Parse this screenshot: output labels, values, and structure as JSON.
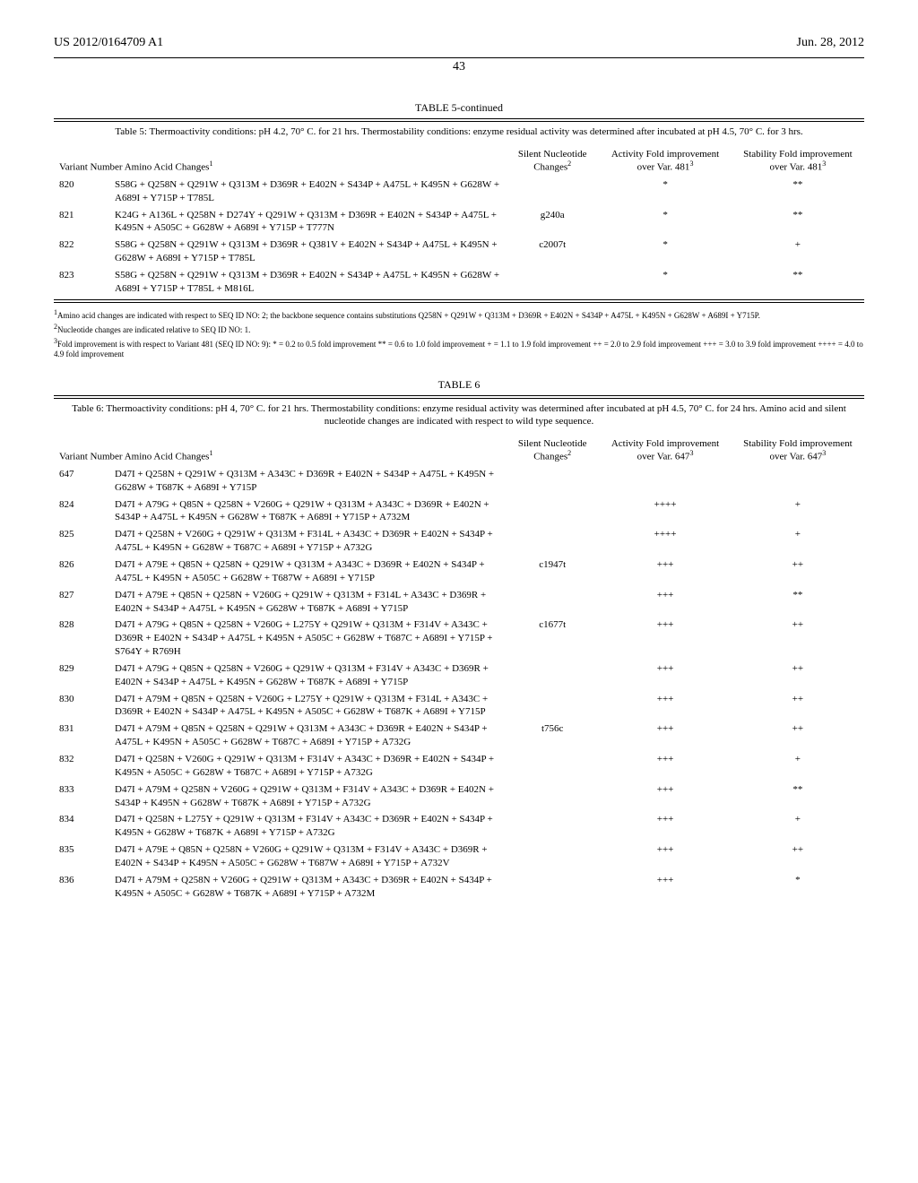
{
  "header": {
    "doc_number": "US 2012/0164709 A1",
    "date": "Jun. 28, 2012",
    "page": "43"
  },
  "table5": {
    "title": "TABLE 5-continued",
    "caption": "Table 5: Thermoactivity conditions: pH 4.2, 70° C. for 21 hrs. Thermostability conditions: enzyme residual activity was determined after incubated at pH 4.5, 70° C. for 3 hrs.",
    "columns": {
      "variant": "Variant Number",
      "changes": "Amino Acid Changes",
      "silent": "Silent Nucleotide Changes",
      "activity": "Activity Fold improvement over Var. 481",
      "stability": "Stability Fold improvement over Var. 481"
    },
    "rows": [
      {
        "num": "820",
        "changes": "S58G + Q258N + Q291W + Q313M + D369R + E402N + S434P + A475L + K495N + G628W + A689I + Y715P + T785L",
        "silent": "",
        "activity": "*",
        "stability": "**"
      },
      {
        "num": "821",
        "changes": "K24G + A136L + Q258N + D274Y + Q291W + Q313M + D369R + E402N + S434P + A475L + K495N + A505C + G628W + A689I + Y715P + T777N",
        "silent": "g240a",
        "activity": "*",
        "stability": "**"
      },
      {
        "num": "822",
        "changes": "S58G + Q258N + Q291W + Q313M + D369R + Q381V + E402N + S434P + A475L + K495N + G628W + A689I + Y715P + T785L",
        "silent": "c2007t",
        "activity": "*",
        "stability": "+"
      },
      {
        "num": "823",
        "changes": "S58G + Q258N + Q291W + Q313M + D369R + E402N + S434P + A475L + K495N + G628W + A689I + Y715P + T785L + M816L",
        "silent": "",
        "activity": "*",
        "stability": "**"
      }
    ],
    "footnotes": [
      "Amino acid changes are indicated with respect to SEQ ID NO: 2; the backbone sequence contains substitutions Q258N + Q291W + Q313M + D369R + E402N + S434P + A475L + K495N + G628W + A689I + Y715P.",
      "Nucleotide changes are indicated relative to SEQ ID NO: 1.",
      "Fold improvement is with respect to Variant 481 (SEQ ID NO: 9): * = 0.2 to 0.5 fold improvement ** = 0.6 to 1.0 fold improvement + = 1.1 to 1.9 fold improvement ++ = 2.0 to 2.9 fold improvement +++ = 3.0 to 3.9 fold improvement ++++ = 4.0 to 4.9 fold improvement"
    ]
  },
  "table6": {
    "title": "TABLE 6",
    "caption": "Table 6: Thermoactivity conditions: pH 4, 70° C. for 21 hrs. Thermostability conditions: enzyme residual activity was determined after incubated at pH 4.5, 70° C. for 24 hrs. Amino acid and silent nucleotide changes are indicated with respect to wild type sequence.",
    "columns": {
      "variant": "Variant Number",
      "changes": "Amino Acid Changes",
      "silent": "Silent Nucleotide Changes",
      "activity": "Activity Fold improvement over Var. 647",
      "stability": "Stability Fold improvement over Var. 647"
    },
    "rows": [
      {
        "num": "647",
        "changes": "D47I + Q258N + Q291W + Q313M + A343C + D369R + E402N + S434P + A475L + K495N + G628W + T687K + A689I + Y715P",
        "silent": "",
        "activity": "",
        "stability": ""
      },
      {
        "num": "824",
        "changes": "D47I + A79G + Q85N + Q258N + V260G + Q291W + Q313M + A343C + D369R + E402N + S434P + A475L + K495N + G628W + T687K + A689I + Y715P + A732M",
        "silent": "",
        "activity": "++++",
        "stability": "+"
      },
      {
        "num": "825",
        "changes": "D47I + Q258N + V260G + Q291W + Q313M + F314L + A343C + D369R + E402N + S434P + A475L + K495N + G628W + T687C + A689I + Y715P + A732G",
        "silent": "",
        "activity": "++++",
        "stability": "+"
      },
      {
        "num": "826",
        "changes": "D47I + A79E + Q85N + Q258N + Q291W + Q313M + A343C + D369R + E402N + S434P + A475L + K495N + A505C + G628W + T687W + A689I + Y715P",
        "silent": "c1947t",
        "activity": "+++",
        "stability": "++"
      },
      {
        "num": "827",
        "changes": "D47I + A79E + Q85N + Q258N + V260G + Q291W + Q313M + F314L + A343C + D369R + E402N + S434P + A475L + K495N + G628W + T687K + A689I + Y715P",
        "silent": "",
        "activity": "+++",
        "stability": "**"
      },
      {
        "num": "828",
        "changes": "D47I + A79G + Q85N + Q258N + V260G + L275Y + Q291W + Q313M + F314V + A343C + D369R + E402N + S434P + A475L + K495N + A505C + G628W + T687C + A689I + Y715P + S764Y + R769H",
        "silent": "c1677t",
        "activity": "+++",
        "stability": "++"
      },
      {
        "num": "829",
        "changes": "D47I + A79G + Q85N + Q258N + V260G + Q291W + Q313M + F314V + A343C + D369R + E402N + S434P + A475L + K495N + G628W + T687K + A689I + Y715P",
        "silent": "",
        "activity": "+++",
        "stability": "++"
      },
      {
        "num": "830",
        "changes": "D47I + A79M + Q85N + Q258N + V260G + L275Y + Q291W + Q313M + F314L + A343C + D369R + E402N + S434P + A475L + K495N + A505C + G628W + T687K + A689I + Y715P",
        "silent": "",
        "activity": "+++",
        "stability": "++"
      },
      {
        "num": "831",
        "changes": "D47I + A79M + Q85N + Q258N + Q291W + Q313M + A343C + D369R + E402N + S434P + A475L + K495N + A505C + G628W + T687C + A689I + Y715P + A732G",
        "silent": "t756c",
        "activity": "+++",
        "stability": "++"
      },
      {
        "num": "832",
        "changes": "D47I + Q258N + V260G + Q291W + Q313M + F314V + A343C + D369R + E402N + S434P + K495N + A505C + G628W + T687C + A689I + Y715P + A732G",
        "silent": "",
        "activity": "+++",
        "stability": "+"
      },
      {
        "num": "833",
        "changes": "D47I + A79M + Q258N + V260G + Q291W + Q313M + F314V + A343C + D369R + E402N + S434P + K495N + G628W + T687K + A689I + Y715P + A732G",
        "silent": "",
        "activity": "+++",
        "stability": "**"
      },
      {
        "num": "834",
        "changes": "D47I + Q258N + L275Y + Q291W + Q313M + F314V + A343C + D369R + E402N + S434P + K495N + G628W + T687K + A689I + Y715P + A732G",
        "silent": "",
        "activity": "+++",
        "stability": "+"
      },
      {
        "num": "835",
        "changes": "D47I + A79E + Q85N + Q258N + V260G + Q291W + Q313M + F314V + A343C + D369R + E402N + S434P + K495N + A505C + G628W + T687W + A689I + Y715P + A732V",
        "silent": "",
        "activity": "+++",
        "stability": "++"
      },
      {
        "num": "836",
        "changes": "D47I + A79M + Q258N + V260G + Q291W + Q313M + A343C + D369R + E402N + S434P + K495N + A505C + G628W + T687K + A689I + Y715P + A732M",
        "silent": "",
        "activity": "+++",
        "stability": "*"
      }
    ]
  }
}
